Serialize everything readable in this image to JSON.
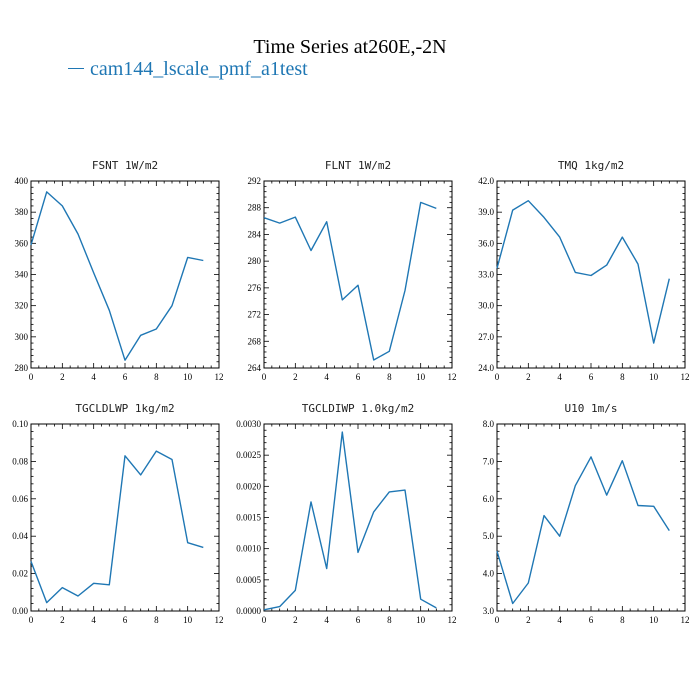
{
  "figure": {
    "title": "Time Series at260E,-2N",
    "legend": {
      "label": "cam144_lscale_pmf_a1test",
      "color": "#1f77b4"
    }
  },
  "chart_data": [
    {
      "type": "line",
      "title": "FSNT   1W/m2",
      "xlim": [
        0,
        12
      ],
      "xticks": [
        "0",
        "2",
        "4",
        "6",
        "8",
        "10",
        "12"
      ],
      "ylim": [
        280,
        400
      ],
      "yticks": [
        "280",
        "300",
        "320",
        "340",
        "360",
        "380",
        "400"
      ],
      "x": [
        0,
        1,
        2,
        3,
        4,
        5,
        6,
        7,
        8,
        9,
        10,
        11
      ],
      "series": [
        {
          "values": [
            359,
            393,
            384,
            366,
            341,
            317,
            285,
            301,
            305,
            320,
            351,
            349
          ]
        }
      ]
    },
    {
      "type": "line",
      "title": "FLNT   1W/m2",
      "xlim": [
        0,
        12
      ],
      "xticks": [
        "0",
        "2",
        "4",
        "6",
        "8",
        "10",
        "12"
      ],
      "ylim": [
        264,
        292
      ],
      "yticks": [
        "264",
        "268",
        "272",
        "276",
        "280",
        "284",
        "288",
        "292"
      ],
      "x": [
        0,
        1,
        2,
        3,
        4,
        5,
        6,
        7,
        8,
        9,
        10,
        11
      ],
      "series": [
        {
          "values": [
            286.5,
            285.7,
            286.6,
            281.6,
            285.9,
            274.2,
            276.4,
            265.2,
            266.5,
            275.6,
            288.8,
            287.9
          ]
        }
      ]
    },
    {
      "type": "line",
      "title": "TMQ   1kg/m2",
      "xlim": [
        0,
        12
      ],
      "xticks": [
        "0",
        "2",
        "4",
        "6",
        "8",
        "10",
        "12"
      ],
      "ylim": [
        24,
        42
      ],
      "yticks": [
        "24.0",
        "27.0",
        "30.0",
        "33.0",
        "36.0",
        "39.0",
        "42.0"
      ],
      "x": [
        0,
        1,
        2,
        3,
        4,
        5,
        6,
        7,
        8,
        9,
        10,
        11
      ],
      "series": [
        {
          "values": [
            33.6,
            39.2,
            40.1,
            38.5,
            36.6,
            33.2,
            32.9,
            33.9,
            36.6,
            34.0,
            26.4,
            32.6
          ]
        }
      ]
    },
    {
      "type": "line",
      "title": "TGCLDLWP   1kg/m2",
      "xlim": [
        0,
        12
      ],
      "xticks": [
        "0",
        "2",
        "4",
        "6",
        "8",
        "10",
        "12"
      ],
      "ylim": [
        0,
        0.1
      ],
      "yticks": [
        "0.00",
        "0.02",
        "0.04",
        "0.06",
        "0.08",
        "0.10"
      ],
      "x": [
        0,
        1,
        2,
        3,
        4,
        5,
        6,
        7,
        8,
        9,
        10,
        11
      ],
      "series": [
        {
          "values": [
            0.0265,
            0.0045,
            0.0125,
            0.008,
            0.0148,
            0.014,
            0.083,
            0.0728,
            0.0855,
            0.081,
            0.0365,
            0.034
          ]
        }
      ]
    },
    {
      "type": "line",
      "title": "TGCLDIWP   1.0kg/m2",
      "xlim": [
        0,
        12
      ],
      "xticks": [
        "0",
        "2",
        "4",
        "6",
        "8",
        "10",
        "12"
      ],
      "ylim": [
        0,
        0.003
      ],
      "yticks": [
        "0.0000",
        "0.0005",
        "0.0010",
        "0.0015",
        "0.0020",
        "0.0025",
        "0.0030"
      ],
      "x": [
        0,
        1,
        2,
        3,
        4,
        5,
        6,
        7,
        8,
        9,
        10,
        11
      ],
      "series": [
        {
          "values": [
            2e-05,
            7e-05,
            0.00033,
            0.00175,
            0.00068,
            0.00287,
            0.00094,
            0.00159,
            0.00191,
            0.00194,
            0.00019,
            5e-05
          ]
        }
      ]
    },
    {
      "type": "line",
      "title": "U10   1m/s",
      "xlim": [
        0,
        12
      ],
      "xticks": [
        "0",
        "2",
        "4",
        "6",
        "8",
        "10",
        "12"
      ],
      "ylim": [
        3,
        8
      ],
      "yticks": [
        "3.0",
        "4.0",
        "5.0",
        "6.0",
        "7.0",
        "8.0"
      ],
      "x": [
        0,
        1,
        2,
        3,
        4,
        5,
        6,
        7,
        8,
        9,
        10,
        11
      ],
      "series": [
        {
          "values": [
            4.6,
            3.2,
            3.75,
            5.55,
            5.0,
            6.35,
            7.12,
            6.1,
            7.02,
            5.82,
            5.8,
            5.15
          ]
        }
      ]
    }
  ]
}
